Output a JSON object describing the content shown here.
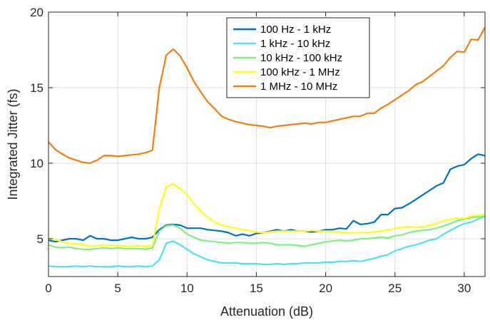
{
  "chart_data": {
    "type": "line",
    "xlabel": "Attenuation (dB)",
    "ylabel": "Integrated Jitter (fs)",
    "xlim": [
      0,
      31.5
    ],
    "ylim": [
      2.5,
      20
    ],
    "xticks": [
      0,
      5,
      10,
      15,
      20,
      25,
      30
    ],
    "yticks": [
      5,
      10,
      15,
      20
    ],
    "grid": true,
    "legend_position": "top-center",
    "x": [
      0,
      0.5,
      1,
      1.5,
      2,
      2.5,
      3,
      3.5,
      4,
      4.5,
      5,
      5.5,
      6,
      6.5,
      7,
      7.5,
      8,
      8.5,
      9,
      9.5,
      10,
      10.5,
      11,
      11.5,
      12,
      12.5,
      13,
      13.5,
      14,
      14.5,
      15,
      15.5,
      16,
      16.5,
      17,
      17.5,
      18,
      18.5,
      19,
      19.5,
      20,
      20.5,
      21,
      21.5,
      22,
      22.5,
      23,
      23.5,
      24,
      24.5,
      25,
      25.5,
      26,
      26.5,
      27,
      27.5,
      28,
      28.5,
      29,
      29.5,
      30,
      30.5,
      31,
      31.5
    ],
    "series": [
      {
        "name": "100 Hz - 1 kHz",
        "color": "#0072BD",
        "values": [
          4.9,
          4.8,
          4.9,
          5.0,
          5.0,
          4.9,
          5.2,
          5.0,
          5.0,
          4.9,
          4.9,
          5.0,
          5.1,
          5.0,
          5.0,
          5.1,
          5.6,
          5.9,
          5.95,
          5.9,
          5.7,
          5.7,
          5.7,
          5.6,
          5.55,
          5.5,
          5.4,
          5.2,
          5.3,
          5.2,
          5.35,
          5.4,
          5.5,
          5.6,
          5.5,
          5.6,
          5.5,
          5.5,
          5.45,
          5.5,
          5.6,
          5.6,
          5.7,
          5.65,
          6.2,
          5.95,
          6.0,
          6.1,
          6.6,
          6.6,
          7.0,
          7.05,
          7.3,
          7.6,
          7.9,
          8.2,
          8.5,
          8.7,
          9.6,
          9.8,
          9.9,
          10.3,
          10.6,
          10.5
        ]
      },
      {
        "name": "1 kHz - 10 kHz",
        "color": "#4DE1F2",
        "values": [
          3.2,
          3.15,
          3.15,
          3.15,
          3.2,
          3.15,
          3.2,
          3.15,
          3.15,
          3.15,
          3.2,
          3.15,
          3.15,
          3.2,
          3.15,
          3.2,
          3.6,
          4.7,
          4.85,
          4.6,
          4.3,
          4.0,
          3.8,
          3.6,
          3.5,
          3.4,
          3.4,
          3.4,
          3.35,
          3.35,
          3.35,
          3.3,
          3.3,
          3.35,
          3.3,
          3.35,
          3.35,
          3.4,
          3.4,
          3.4,
          3.45,
          3.45,
          3.5,
          3.5,
          3.55,
          3.5,
          3.6,
          3.7,
          3.85,
          3.95,
          4.2,
          4.35,
          4.5,
          4.6,
          4.75,
          4.9,
          5.0,
          5.3,
          5.55,
          5.8,
          6.0,
          6.1,
          6.3,
          6.5
        ]
      },
      {
        "name": "10 kHz - 100 kHz",
        "color": "#7FF07F",
        "values": [
          4.6,
          4.45,
          4.4,
          4.45,
          4.35,
          4.3,
          4.3,
          4.35,
          4.4,
          4.35,
          4.4,
          4.35,
          4.35,
          4.35,
          4.3,
          4.4,
          5.5,
          5.85,
          5.9,
          5.7,
          5.3,
          5.1,
          4.9,
          4.85,
          4.8,
          4.75,
          4.7,
          4.75,
          4.75,
          4.7,
          4.7,
          4.75,
          4.7,
          4.6,
          4.6,
          4.6,
          4.55,
          4.5,
          4.6,
          4.7,
          4.8,
          4.85,
          4.9,
          4.85,
          4.9,
          5.0,
          5.0,
          5.05,
          5.1,
          5.05,
          5.2,
          5.25,
          5.4,
          5.5,
          5.55,
          5.6,
          5.7,
          5.85,
          6.0,
          6.2,
          6.3,
          6.4,
          6.45,
          6.55
        ]
      },
      {
        "name": "100 kHz - 1 MHz",
        "color": "#FFFF1A",
        "values": [
          5.05,
          4.95,
          4.8,
          4.7,
          4.65,
          4.6,
          4.5,
          4.55,
          4.6,
          4.55,
          4.55,
          4.5,
          4.5,
          4.55,
          4.5,
          4.55,
          7.0,
          8.4,
          8.65,
          8.3,
          7.9,
          7.3,
          6.8,
          6.4,
          6.1,
          5.9,
          5.8,
          5.7,
          5.6,
          5.55,
          5.45,
          5.4,
          5.45,
          5.5,
          5.5,
          5.5,
          5.5,
          5.5,
          5.55,
          5.5,
          5.5,
          5.45,
          5.45,
          5.4,
          5.4,
          5.4,
          5.4,
          5.45,
          5.5,
          5.6,
          5.7,
          5.75,
          5.8,
          5.75,
          5.8,
          5.9,
          6.0,
          6.2,
          6.3,
          6.35,
          6.35,
          6.5,
          6.55,
          6.6
        ]
      },
      {
        "name": "1 MHz - 10 MHz",
        "color": "#F07F0F",
        "values": [
          11.4,
          10.9,
          10.6,
          10.35,
          10.2,
          10.05,
          10.0,
          10.2,
          10.5,
          10.5,
          10.45,
          10.5,
          10.55,
          10.6,
          10.7,
          10.85,
          15.0,
          17.15,
          17.55,
          17.1,
          16.3,
          15.4,
          14.7,
          14.05,
          13.6,
          13.1,
          12.9,
          12.75,
          12.65,
          12.55,
          12.5,
          12.45,
          12.35,
          12.45,
          12.5,
          12.55,
          12.6,
          12.65,
          12.6,
          12.7,
          12.7,
          12.8,
          12.9,
          13.0,
          13.1,
          13.1,
          13.3,
          13.3,
          13.65,
          13.9,
          14.2,
          14.5,
          14.8,
          15.2,
          15.4,
          15.75,
          16.1,
          16.45,
          17.0,
          17.4,
          17.35,
          18.2,
          18.15,
          19.0
        ]
      }
    ]
  }
}
